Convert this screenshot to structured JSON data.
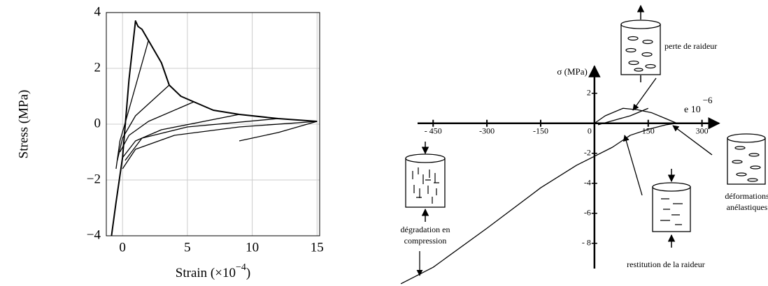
{
  "chart_data": [
    {
      "type": "line",
      "frame": "box",
      "grid": true,
      "color": "#000000",
      "ylabel": "Stress (MPa)",
      "xlabel_parts": [
        "Strain (×10",
        "−4",
        ")"
      ],
      "xlim": [
        -1.25,
        15.2
      ],
      "ylim": [
        -4,
        4
      ],
      "xticks": [
        0,
        5,
        10,
        15
      ],
      "yticks": [
        {
          "value": -4,
          "label": "−4"
        },
        {
          "value": -2,
          "label": "−2"
        },
        0,
        2,
        4
      ],
      "series": [
        {
          "x": [
            -0.85,
            -0.5,
            0,
            0.5,
            1.0,
            1.2,
            1.5,
            2.0,
            2.5,
            3.0,
            3.6,
            4.5,
            5.5,
            7,
            9,
            12,
            15
          ],
          "values": [
            -4,
            -2.8,
            -1.2,
            1.6,
            3.7,
            3.5,
            3.4,
            3.0,
            2.6,
            2.2,
            1.4,
            1.0,
            0.8,
            0.5,
            0.35,
            0.2,
            0.1
          ]
        },
        {
          "x": [
            2.0,
            0.3,
            -0.2,
            -0.5
          ],
          "values": [
            3.0,
            0.2,
            -0.6,
            -1.6
          ]
        },
        {
          "x": [
            3.6,
            1.0,
            0,
            -0.4
          ],
          "values": [
            1.4,
            0.3,
            -0.5,
            -1.3
          ]
        },
        {
          "x": [
            5.5,
            2,
            0.5,
            -0.2
          ],
          "values": [
            0.8,
            0.1,
            -0.4,
            -1.0
          ]
        },
        {
          "x": [
            9,
            3,
            1,
            0
          ],
          "values": [
            0.35,
            -0.2,
            -0.6,
            -1.2
          ]
        },
        {
          "x": [
            12,
            5,
            1.5,
            0.2
          ],
          "values": [
            0.2,
            -0.1,
            -0.5,
            -1.3
          ]
        },
        {
          "x": [
            15,
            9,
            4,
            1,
            0
          ],
          "values": [
            0.1,
            -0.1,
            -0.4,
            -0.9,
            -1.6
          ]
        },
        {
          "x": [
            9,
            12,
            15
          ],
          "values": [
            -0.6,
            -0.3,
            0.1
          ]
        }
      ]
    },
    {
      "type": "line",
      "frame": "cross",
      "color": "#000000",
      "ylabel": "σ (MPa)",
      "xlabel_parts": [
        "e 10",
        "−6"
      ],
      "xlim": [
        -550,
        330
      ],
      "ylim": [
        -10.8,
        3.8
      ],
      "xticks": [
        {
          "value": -450,
          "label": "- 450"
        },
        {
          "value": -300,
          "label": "-300"
        },
        {
          "value": -150,
          "label": "-150"
        },
        0,
        150,
        300
      ],
      "yticks": [
        2,
        {
          "value": -2,
          "label": "-2"
        },
        {
          "value": -4,
          "label": "-4"
        },
        {
          "value": -6,
          "label": "-6"
        },
        {
          "value": -8,
          "label": "- 8"
        }
      ],
      "annotations": [
        "perte de raideur",
        "déformations",
        "anélastiques",
        "restitution de la raideur",
        "dégradation en",
        "compression"
      ],
      "series": [
        {
          "x": [
            -540,
            -450,
            -300,
            -150,
            -50,
            0,
            50,
            100,
            150,
            200,
            230
          ],
          "values": [
            -10.7,
            -9.6,
            -7.0,
            -4.3,
            -2.8,
            -2.2,
            -1.6,
            -0.8,
            -0.4,
            -0.1,
            0
          ]
        },
        {
          "x": [
            0,
            30,
            80,
            120,
            160,
            200,
            230
          ],
          "values": [
            0,
            0.5,
            1.0,
            0.9,
            0.7,
            0.3,
            0
          ]
        },
        {
          "x": [
            10,
            100,
            150
          ],
          "values": [
            -0.1,
            0.5,
            1.0
          ]
        }
      ]
    }
  ]
}
